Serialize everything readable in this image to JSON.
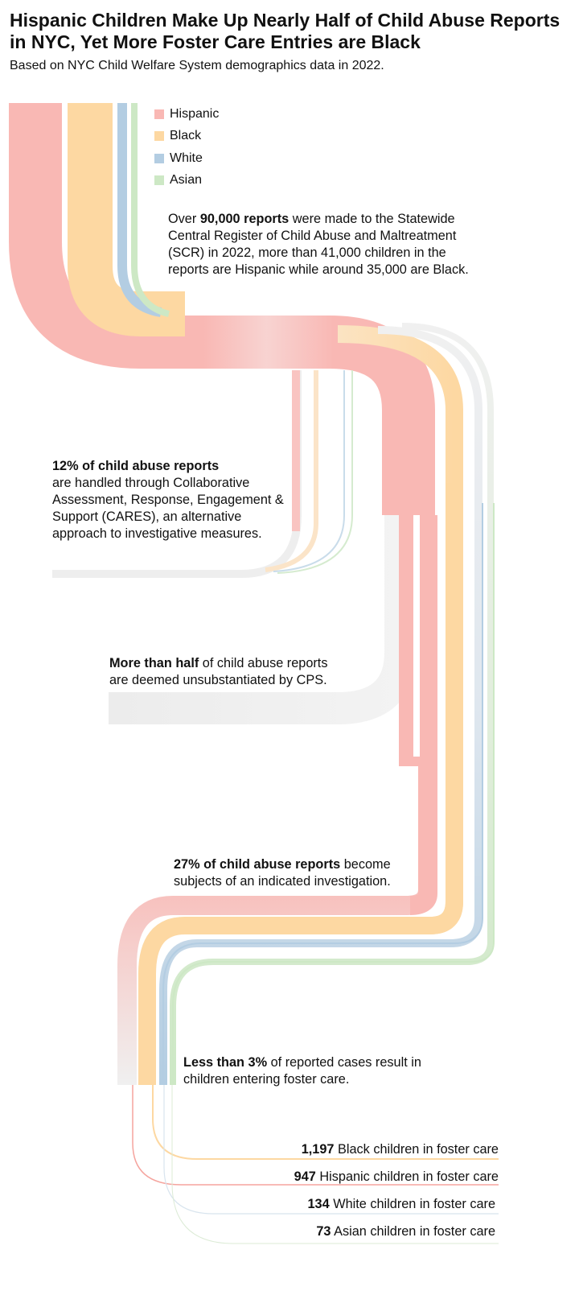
{
  "title": "Hispanic Children Make Up Nearly Half of Child Abuse Reports in NYC, Yet More Foster Care Entries are Black",
  "subtitle": "Based on NYC Child Welfare System demographics data in 2022.",
  "colors": {
    "hispanic": "#f9b8b4",
    "black": "#fdd8a2",
    "white": "#b3cde2",
    "asian": "#cde8c5",
    "exit": "#ececec"
  },
  "legend": [
    {
      "label": "Hispanic",
      "color": "#f9b8b4"
    },
    {
      "label": "Black",
      "color": "#fdd8a2"
    },
    {
      "label": "White",
      "color": "#b3cde2"
    },
    {
      "label": "Asian",
      "color": "#cde8c5"
    }
  ],
  "annotations": {
    "reports": {
      "pre": "Over ",
      "bold": "90,000 reports",
      "rest": " were made to the Statewide Central Register of Child Abuse and Maltreatment (SCR) in 2022, more than 41,000 children in the reports are Hispanic while around 35,000 are Black."
    },
    "cares": {
      "bold": "12% of child abuse reports",
      "rest": "are handled through Collaborative Assessment, Response, Engagement & Support (CARES), an alternative approach to investigative measures."
    },
    "unsubstantiated": {
      "bold": "More than half",
      "rest": " of child abuse reports are deemed unsubstantiated by CPS."
    },
    "indicated": {
      "bold": "27% of child abuse reports",
      "rest": " become subjects of an indicated investigation."
    },
    "foster": {
      "bold": "Less than 3%",
      "rest": " of reported cases result in children entering foster care."
    }
  },
  "foster_care": [
    {
      "count": "1,197",
      "label": "Black children in foster care",
      "group": "Black"
    },
    {
      "count": "947",
      "label": "Hispanic children in foster care",
      "group": "Hispanic"
    },
    {
      "count": "134",
      "label": "White children in foster care",
      "group": "White"
    },
    {
      "count": "73",
      "label": "Asian children in foster care",
      "group": "Asian"
    }
  ]
}
